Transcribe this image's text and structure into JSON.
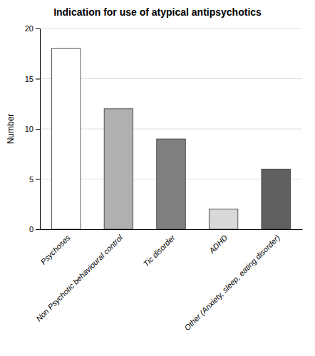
{
  "chart_data": {
    "type": "bar",
    "title": "Indication for use of atypical antipsychotics",
    "ylabel": "Number",
    "categories": [
      "Psychoses",
      "Non Psychotic behavioural control",
      "Tic disorder",
      "ADHD",
      "Other (Anxiety, sleep, eating disorder)"
    ],
    "values": [
      18,
      12,
      9,
      2,
      6
    ],
    "colors": [
      "#ffffff",
      "#b0b0b0",
      "#808080",
      "#d8d8d8",
      "#606060"
    ],
    "ylim": [
      0,
      20
    ],
    "yticks": [
      0,
      5,
      10,
      15,
      20
    ],
    "grid": true
  }
}
